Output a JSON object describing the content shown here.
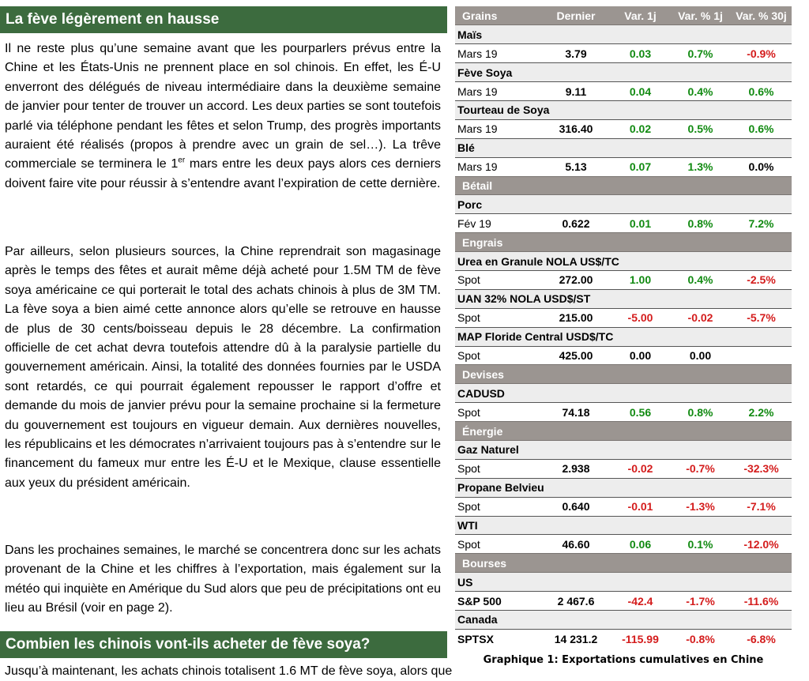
{
  "article": {
    "heading1": "La fève légèrement en hausse",
    "para1_before_sup": "Il ne reste plus qu’une semaine avant que les pourparlers prévus entre la Chine et les États-Unis ne prennent place en sol chinois. En effet, les É-U enverront des délégués de niveau intermédiaire dans la deuxième semaine de janvier pour tenter de trouver un accord. Les deux parties se sont toutefois parlé via téléphone pendant les fêtes et selon Trump, des progrès importants auraient été réalisés (propos à prendre avec un grain de sel…). La trêve commerciale se terminera le 1",
    "para1_sup": "er",
    "para1_after_sup": " mars entre les deux pays alors ces derniers doivent faire vite pour réussir à s’entendre avant l’expiration de cette dernière.",
    "para2": "Par ailleurs, selon plusieurs sources, la Chine reprendrait son magasinage après le temps des fêtes et aurait même déjà acheté pour 1.5M TM de fève soya américaine ce qui porterait le total des achats chinois à plus de 3M TM. La fève soya a bien aimé cette annonce alors qu’elle se retrouve en hausse de plus de 30 cents/boisseau depuis le 28 décembre. La confirmation officielle de cet achat devra toutefois attendre dû à la paralysie partielle du gouvernement américain. Ainsi, la totalité des données fournies par le USDA sont retardés, ce qui pourrait également repousser le rapport d’offre et demande du mois de janvier prévu pour la semaine prochaine si la fermeture du gouvernement est toujours en vigueur demain. Aux dernières nouvelles, les républicains et les démocrates n’arrivaient toujours pas à s’entendre sur le financement du fameux mur entre les É-U et le Mexique, clause essentielle aux yeux du président américain.",
    "para3": "Dans les prochaines semaines, le marché se concentrera donc sur les achats provenant de la Chine et les chiffres à l’exportation, mais également sur la météo qui inquiète en Amérique du Sud alors que peu de précipitations ont eu lieu au Brésil (voir en page 2).",
    "heading2": "Combien les chinois vont-ils acheter de fève soya?",
    "cut_line": "Jusqu’à maintenant, les achats chinois totalisent 1.6 MT de fève soya, alors que"
  },
  "market_table": {
    "headers": [
      "Grains",
      "Dernier",
      "Var. 1j",
      "Var. % 1j",
      "Var. % 30j"
    ],
    "rows": [
      {
        "kind": "sub",
        "label": "Maïs"
      },
      {
        "kind": "data",
        "label": "Mars 19",
        "last": "3.79",
        "var": "0.03",
        "pct1": "0.7%",
        "pct30": "-0.9%"
      },
      {
        "kind": "sub",
        "label": "Fève Soya"
      },
      {
        "kind": "data",
        "label": "Mars 19",
        "last": "9.11",
        "var": "0.04",
        "pct1": "0.4%",
        "pct30": "0.6%"
      },
      {
        "kind": "sub",
        "label": "Tourteau de Soya"
      },
      {
        "kind": "data",
        "label": "Mars 19",
        "last": "316.40",
        "var": "0.02",
        "pct1": "0.5%",
        "pct30": "0.6%"
      },
      {
        "kind": "sub",
        "label": "Blé"
      },
      {
        "kind": "data",
        "label": "Mars 19",
        "last": "5.13",
        "var": "0.07",
        "pct1": "1.3%",
        "pct30": "0.0%"
      },
      {
        "kind": "cat",
        "label": "Bétail"
      },
      {
        "kind": "sub",
        "label": "Porc"
      },
      {
        "kind": "data",
        "label": "Fév 19",
        "last": "0.622",
        "var": "0.01",
        "pct1": "0.8%",
        "pct30": "7.2%"
      },
      {
        "kind": "cat",
        "label": "Engrais"
      },
      {
        "kind": "sub",
        "label": "Urea en Granule NOLA US$/TC"
      },
      {
        "kind": "data",
        "label": "Spot",
        "last": "272.00",
        "var": "1.00",
        "pct1": "0.4%",
        "pct30": "-2.5%"
      },
      {
        "kind": "sub",
        "label": "UAN 32% NOLA USD$/ST"
      },
      {
        "kind": "data",
        "label": "Spot",
        "last": "215.00",
        "var": "-5.00",
        "pct1": "-0.02",
        "pct30": "-5.7%"
      },
      {
        "kind": "sub",
        "label": "MAP Floride Central USD$/TC"
      },
      {
        "kind": "data",
        "label": "Spot",
        "last": "425.00",
        "var": "0.00",
        "pct1": "0.00",
        "pct30": ""
      },
      {
        "kind": "cat",
        "label": "Devises"
      },
      {
        "kind": "sub",
        "label": "CADUSD"
      },
      {
        "kind": "data",
        "label": "Spot",
        "last": "74.18",
        "var": "0.56",
        "pct1": "0.8%",
        "pct30": "2.2%"
      },
      {
        "kind": "cat",
        "label": "Énergie"
      },
      {
        "kind": "sub",
        "label": "Gaz Naturel"
      },
      {
        "kind": "data",
        "label": "Spot",
        "last": "2.938",
        "var": "-0.02",
        "pct1": "-0.7%",
        "pct30": "-32.3%"
      },
      {
        "kind": "sub",
        "label": "Propane Belvieu"
      },
      {
        "kind": "data",
        "label": "Spot",
        "last": "0.640",
        "var": "-0.01",
        "pct1": "-1.3%",
        "pct30": "-7.1%"
      },
      {
        "kind": "sub",
        "label": "WTI"
      },
      {
        "kind": "data",
        "label": "Spot",
        "last": "46.60",
        "var": "0.06",
        "pct1": "0.1%",
        "pct30": "-12.0%"
      },
      {
        "kind": "cat",
        "label": "Bourses"
      },
      {
        "kind": "sub",
        "label": "US"
      },
      {
        "kind": "data",
        "label": "S&P 500",
        "bold_label": true,
        "last": "2 467.6",
        "var": "-42.4",
        "pct1": "-1.7%",
        "pct30": "-11.6%"
      },
      {
        "kind": "sub",
        "label": "Canada"
      },
      {
        "kind": "data",
        "label": "SPTSX",
        "bold_label": true,
        "last": "14 231.2",
        "var": "-115.99",
        "pct1": "-0.8%",
        "pct30": "-6.8%"
      }
    ]
  },
  "chart_caption": "Graphique 1: Exportations cumulatives en Chine",
  "colors": {
    "heading_bg": "#3c6b3e",
    "table_header_bg": "#9b9591",
    "positive": "#118a11",
    "negative": "#d41c1c"
  }
}
